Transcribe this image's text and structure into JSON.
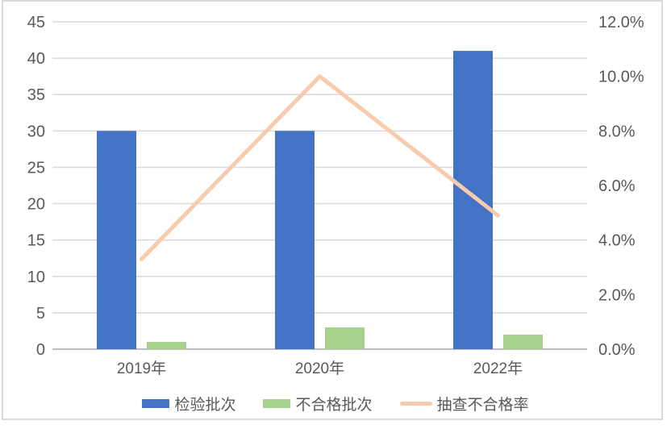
{
  "chart_data": {
    "type": "combo",
    "title": "",
    "categories": [
      "2019年",
      "2020年",
      "2022年"
    ],
    "series": [
      {
        "name": "检验批次",
        "chart": "bar",
        "axis": "left",
        "color": "#4472C4",
        "values": [
          30,
          30,
          41
        ]
      },
      {
        "name": "不合格批次",
        "chart": "bar",
        "axis": "left",
        "color": "#A9D18E",
        "values": [
          1,
          3,
          2
        ]
      },
      {
        "name": "抽查不合格率",
        "chart": "line",
        "axis": "right",
        "color": "#F8CBAD",
        "values": [
          3.3,
          10.0,
          4.9
        ],
        "unit": "%"
      }
    ],
    "left_axis": {
      "min": 0,
      "max": 45,
      "step": 5,
      "tick_labels": [
        "0",
        "5",
        "10",
        "15",
        "20",
        "25",
        "30",
        "35",
        "40",
        "45"
      ]
    },
    "right_axis": {
      "min": 0,
      "max": 12,
      "step": 2,
      "tick_labels": [
        "0.0%",
        "2.0%",
        "4.0%",
        "6.0%",
        "8.0%",
        "10.0%",
        "12.0%"
      ]
    },
    "grid": true,
    "legend_position": "bottom",
    "colors": {
      "grid": "#D9D9D9",
      "axis_line": "#BFBFBF",
      "text": "#595959",
      "border": "#D9D9D9",
      "background": "#FFFFFF"
    }
  }
}
